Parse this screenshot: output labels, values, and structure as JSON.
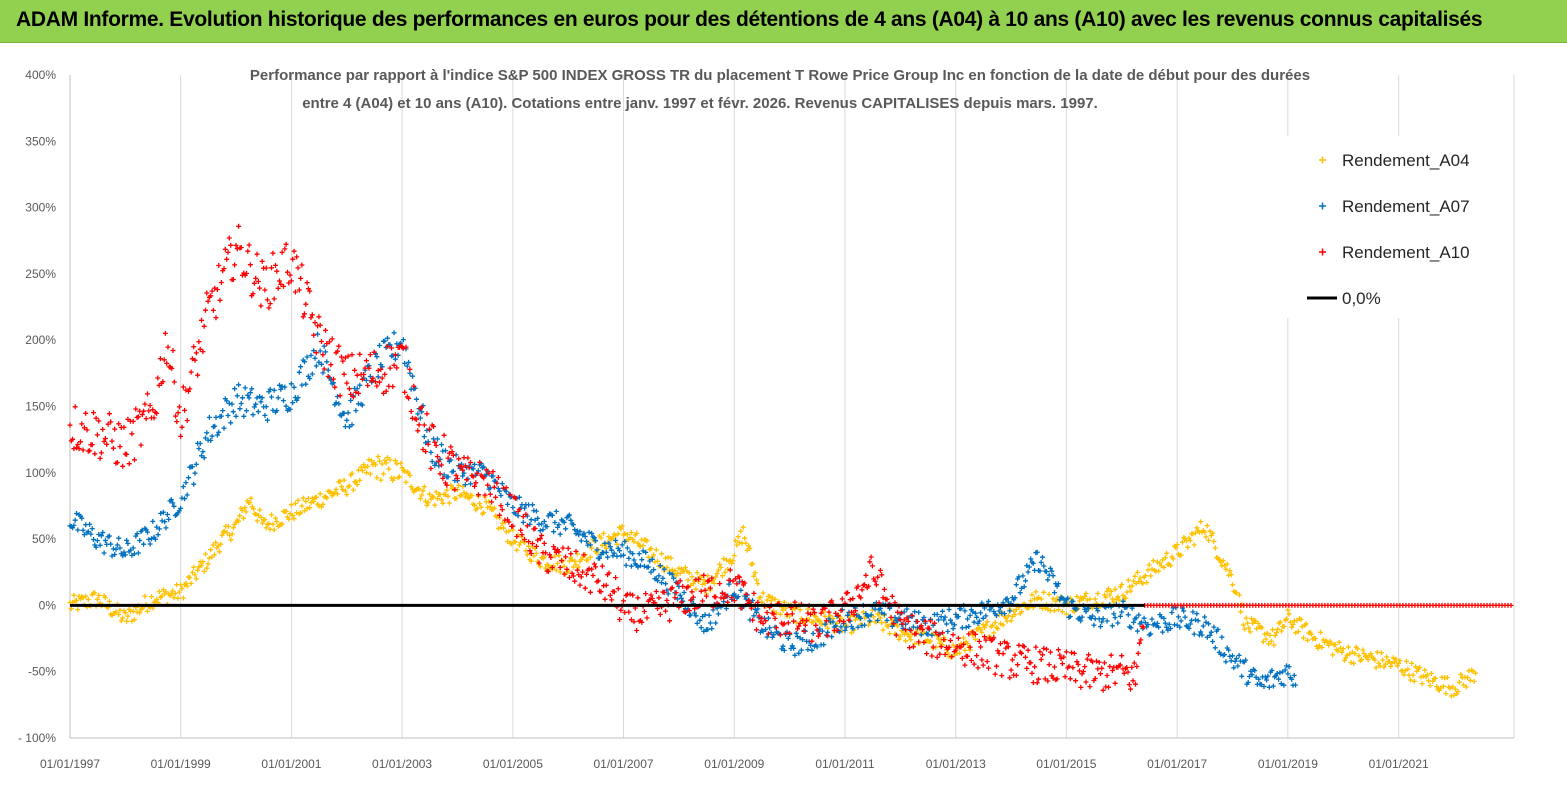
{
  "banner": {
    "title": "ADAM Informe. Evolution historique des performances en euros pour des détentions de 4 ans (A04) à 10 ans (A10) avec les revenus connus capitalisés"
  },
  "colors": {
    "banner": "#92d050",
    "A04": "#ffc000",
    "A07": "#0070c0",
    "A10": "#ff0000",
    "zero_line": "#000000",
    "grid": "#d9d9d9"
  },
  "chart_data": {
    "type": "scatter",
    "title_lines": [
      "Performance par rapport à l'indice S&P 500 INDEX GROSS TR  du placement T Rowe Price Group Inc en fonction de la date de début pour des durées",
      "entre 4 (A04) et 10 ans (A10).  Cotations entre janv. 1997 et févr. 2026. Revenus  CAPITALISES depuis mars. 1997."
    ],
    "x_range": [
      "1997-01-01",
      "2023-02-01"
    ],
    "ylim": [
      -1.0,
      4.0
    ],
    "y_ticks": [
      "400%",
      "350%",
      "300%",
      "250%",
      "200%",
      "150%",
      "100%",
      "50%",
      "0%",
      "-50%",
      "- 100%"
    ],
    "x_ticks": [
      "01/01/1997",
      "01/01/1999",
      "01/01/2001",
      "01/01/2003",
      "01/01/2005",
      "01/01/2007",
      "01/01/2009",
      "01/01/2011",
      "01/01/2013",
      "01/01/2015",
      "01/01/2017",
      "01/01/2019",
      "01/01/2021"
    ],
    "grid": "vertical",
    "legend_position": "top-right",
    "marker": "plus",
    "series": [
      {
        "name": "Rendement_A04",
        "color": "#ffc000",
        "points": [
          [
            "1997-01-01",
            0.0
          ],
          [
            "1997-07-01",
            0.05
          ],
          [
            "1998-01-01",
            -0.1
          ],
          [
            "1998-07-01",
            0.05
          ],
          [
            "1999-01-01",
            0.1
          ],
          [
            "1999-07-01",
            0.35
          ],
          [
            "1999-10-01",
            0.5
          ],
          [
            "2000-01-01",
            0.6
          ],
          [
            "2000-04-01",
            0.8
          ],
          [
            "2000-07-01",
            0.6
          ],
          [
            "2001-01-01",
            0.7
          ],
          [
            "2001-07-01",
            0.8
          ],
          [
            "2002-01-01",
            0.9
          ],
          [
            "2002-07-01",
            1.05
          ],
          [
            "2003-01-01",
            1.0
          ],
          [
            "2003-07-01",
            0.8
          ],
          [
            "2004-01-01",
            0.85
          ],
          [
            "2004-07-01",
            0.75
          ],
          [
            "2005-01-01",
            0.5
          ],
          [
            "2005-07-01",
            0.35
          ],
          [
            "2006-01-01",
            0.3
          ],
          [
            "2006-07-01",
            0.45
          ],
          [
            "2007-01-01",
            0.55
          ],
          [
            "2007-07-01",
            0.4
          ],
          [
            "2008-01-01",
            0.25
          ],
          [
            "2008-07-01",
            0.15
          ],
          [
            "2009-01-01",
            0.4
          ],
          [
            "2009-03-01",
            0.55
          ],
          [
            "2009-07-01",
            0.05
          ],
          [
            "2010-01-01",
            -0.05
          ],
          [
            "2010-07-01",
            -0.1
          ],
          [
            "2011-01-01",
            -0.15
          ],
          [
            "2011-07-01",
            -0.1
          ],
          [
            "2012-01-01",
            -0.2
          ],
          [
            "2012-07-01",
            -0.25
          ],
          [
            "2013-01-01",
            -0.35
          ],
          [
            "2013-07-01",
            -0.2
          ],
          [
            "2014-01-01",
            -0.05
          ],
          [
            "2014-07-01",
            0.05
          ],
          [
            "2015-01-01",
            0.0
          ],
          [
            "2015-07-01",
            0.05
          ],
          [
            "2016-01-01",
            0.1
          ],
          [
            "2016-07-01",
            0.25
          ],
          [
            "2017-01-01",
            0.4
          ],
          [
            "2017-07-01",
            0.6
          ],
          [
            "2018-01-01",
            0.2
          ],
          [
            "2018-04-01",
            -0.15
          ],
          [
            "2018-10-01",
            -0.25
          ],
          [
            "2019-01-01",
            -0.1
          ],
          [
            "2019-07-01",
            -0.25
          ],
          [
            "2020-01-01",
            -0.35
          ],
          [
            "2020-07-01",
            -0.4
          ],
          [
            "2021-01-01",
            -0.45
          ],
          [
            "2021-07-01",
            -0.55
          ],
          [
            "2022-01-01",
            -0.62
          ],
          [
            "2022-04-01",
            -0.55
          ],
          [
            "2022-06-01",
            -0.5
          ]
        ]
      },
      {
        "name": "Rendement_A07",
        "color": "#0070c0",
        "points": [
          [
            "1997-01-01",
            0.65
          ],
          [
            "1997-07-01",
            0.5
          ],
          [
            "1998-01-01",
            0.4
          ],
          [
            "1998-07-01",
            0.55
          ],
          [
            "1999-01-01",
            0.8
          ],
          [
            "1999-07-01",
            1.3
          ],
          [
            "2000-01-01",
            1.55
          ],
          [
            "2000-07-01",
            1.5
          ],
          [
            "2001-01-01",
            1.6
          ],
          [
            "2001-07-01",
            1.95
          ],
          [
            "2002-01-01",
            1.4
          ],
          [
            "2002-07-01",
            1.8
          ],
          [
            "2003-01-01",
            2.0
          ],
          [
            "2003-07-01",
            1.2
          ],
          [
            "2004-01-01",
            1.0
          ],
          [
            "2004-07-01",
            1.0
          ],
          [
            "2005-01-01",
            0.75
          ],
          [
            "2005-07-01",
            0.65
          ],
          [
            "2006-01-01",
            0.6
          ],
          [
            "2006-07-01",
            0.45
          ],
          [
            "2007-01-01",
            0.4
          ],
          [
            "2007-07-01",
            0.3
          ],
          [
            "2008-01-01",
            0.1
          ],
          [
            "2008-07-01",
            -0.15
          ],
          [
            "2009-01-01",
            0.15
          ],
          [
            "2009-07-01",
            -0.15
          ],
          [
            "2010-01-01",
            -0.3
          ],
          [
            "2010-07-01",
            -0.25
          ],
          [
            "2011-01-01",
            -0.1
          ],
          [
            "2011-07-01",
            -0.05
          ],
          [
            "2012-01-01",
            -0.1
          ],
          [
            "2012-07-01",
            -0.15
          ],
          [
            "2013-01-01",
            -0.1
          ],
          [
            "2013-07-01",
            -0.05
          ],
          [
            "2014-01-01",
            0.05
          ],
          [
            "2014-07-01",
            0.35
          ],
          [
            "2015-01-01",
            0.0
          ],
          [
            "2015-07-01",
            -0.1
          ],
          [
            "2016-01-01",
            -0.05
          ],
          [
            "2016-07-01",
            -0.15
          ],
          [
            "2017-01-01",
            -0.1
          ],
          [
            "2017-07-01",
            -0.15
          ],
          [
            "2018-01-01",
            -0.4
          ],
          [
            "2018-07-01",
            -0.6
          ],
          [
            "2019-01-01",
            -0.5
          ],
          [
            "2019-03-01",
            -0.55
          ]
        ]
      },
      {
        "name": "Rendement_A10",
        "color": "#ff0000",
        "points": [
          [
            "1997-01-01",
            1.35
          ],
          [
            "1997-07-01",
            1.3
          ],
          [
            "1998-01-01",
            1.2
          ],
          [
            "1998-07-01",
            1.45
          ],
          [
            "1998-10-01",
            2.0
          ],
          [
            "1999-01-01",
            1.4
          ],
          [
            "1999-07-01",
            2.2
          ],
          [
            "2000-01-01",
            2.7
          ],
          [
            "2000-07-01",
            2.4
          ],
          [
            "2001-01-01",
            2.6
          ],
          [
            "2001-07-01",
            2.0
          ],
          [
            "2002-01-01",
            1.7
          ],
          [
            "2002-07-01",
            1.75
          ],
          [
            "2003-01-01",
            1.85
          ],
          [
            "2003-07-01",
            1.2
          ],
          [
            "2004-01-01",
            1.0
          ],
          [
            "2004-07-01",
            0.95
          ],
          [
            "2005-01-01",
            0.7
          ],
          [
            "2005-07-01",
            0.4
          ],
          [
            "2006-01-01",
            0.3
          ],
          [
            "2006-07-01",
            0.2
          ],
          [
            "2006-11-01",
            0.1
          ],
          [
            "2007-01-01",
            -0.05
          ],
          [
            "2007-07-01",
            -0.05
          ],
          [
            "2008-01-01",
            0.05
          ],
          [
            "2008-07-01",
            0.1
          ],
          [
            "2009-01-01",
            0.15
          ],
          [
            "2009-07-01",
            -0.1
          ],
          [
            "2010-01-01",
            -0.1
          ],
          [
            "2010-07-01",
            -0.15
          ],
          [
            "2011-01-01",
            -0.05
          ],
          [
            "2011-07-01",
            0.25
          ],
          [
            "2012-01-01",
            -0.15
          ],
          [
            "2012-07-01",
            -0.25
          ],
          [
            "2013-01-01",
            -0.3
          ],
          [
            "2013-07-01",
            -0.35
          ],
          [
            "2014-01-01",
            -0.42
          ],
          [
            "2014-07-01",
            -0.45
          ],
          [
            "2015-01-01",
            -0.48
          ],
          [
            "2015-07-01",
            -0.52
          ],
          [
            "2016-01-01",
            -0.5
          ],
          [
            "2016-04-01",
            -0.55
          ],
          [
            "2016-06-01",
            0.0
          ],
          [
            "2023-02-01",
            0.0
          ]
        ]
      },
      {
        "name": "0,0%",
        "color": "#000000",
        "kind": "line",
        "points": [
          [
            "1997-01-01",
            0.0
          ],
          [
            "2016-06-01",
            0.0
          ]
        ]
      }
    ]
  }
}
